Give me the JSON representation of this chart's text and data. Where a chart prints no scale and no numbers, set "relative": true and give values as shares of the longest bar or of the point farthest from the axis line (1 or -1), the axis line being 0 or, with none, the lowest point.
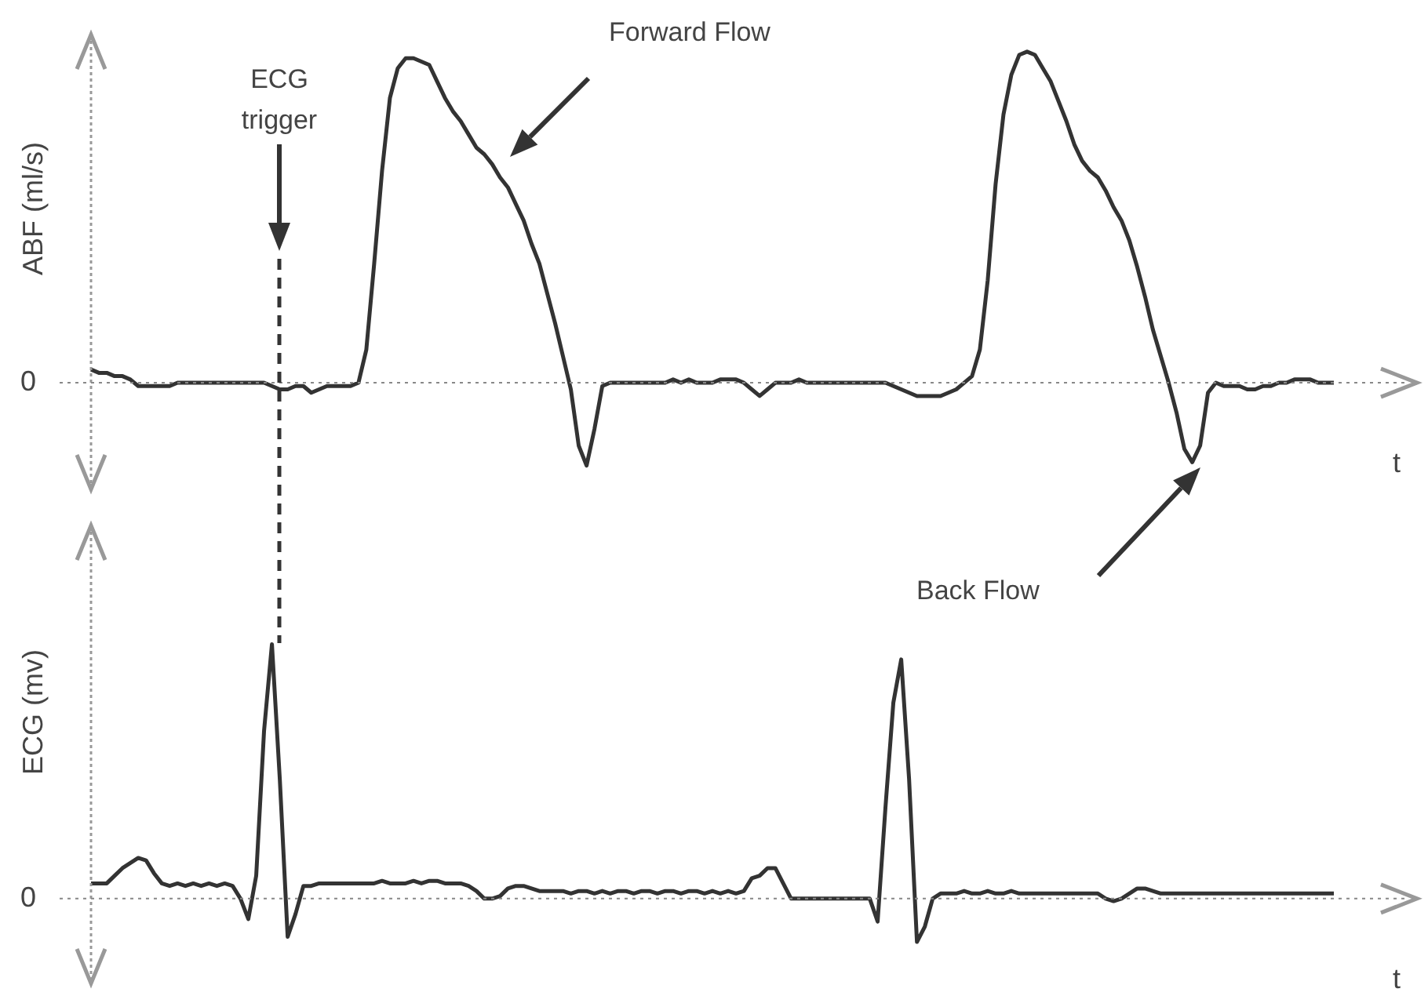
{
  "chart_data": [
    {
      "type": "line",
      "ylabel": "ABF (ml/s)",
      "xlabel": "t",
      "relative": true,
      "color": "#333333",
      "categories": [
        null,
        null,
        null,
        null,
        null,
        null,
        null,
        null,
        null,
        null,
        null,
        null,
        null,
        null,
        null,
        null,
        null,
        null,
        null,
        null,
        null,
        null,
        null,
        null,
        null,
        null,
        null,
        null,
        null,
        null,
        null,
        null,
        null,
        null,
        null,
        null,
        null,
        null,
        null,
        null,
        null,
        null,
        null,
        null,
        null,
        null,
        null,
        null,
        null,
        null,
        null,
        null,
        null,
        null,
        null,
        null,
        null,
        null,
        null,
        null,
        null,
        null,
        null,
        null,
        null,
        null,
        null,
        null,
        null,
        null,
        null,
        null,
        null,
        null,
        null,
        null,
        null,
        null,
        null,
        null,
        null,
        null,
        null,
        null,
        null,
        null,
        null,
        null,
        null,
        null,
        null,
        null,
        null,
        null,
        null,
        null,
        null,
        null,
        null,
        null,
        null,
        null,
        null,
        null,
        null,
        null,
        null,
        null,
        null,
        null,
        null,
        null,
        null,
        null,
        null,
        null,
        null,
        null,
        null,
        null,
        null,
        null,
        null,
        null,
        null,
        null,
        null,
        null,
        null,
        null,
        null,
        null,
        null,
        null,
        null,
        null,
        null,
        null,
        null,
        null,
        null,
        null,
        null,
        null,
        null,
        null,
        null,
        null,
        null,
        null,
        null,
        null,
        null,
        null,
        null,
        null,
        null,
        null,
        null
      ],
      "values": [
        0.04,
        0.03,
        0.03,
        0.02,
        0.02,
        0.01,
        -0.01,
        -0.01,
        -0.01,
        -0.01,
        -0.01,
        0,
        0,
        0,
        0,
        0,
        0,
        0,
        0,
        0,
        0,
        0,
        0,
        -0.01,
        -0.02,
        -0.02,
        -0.01,
        -0.01,
        -0.03,
        -0.02,
        -0.01,
        -0.01,
        -0.01,
        -0.01,
        0,
        0.1,
        0.36,
        0.64,
        0.86,
        0.95,
        0.98,
        0.98,
        0.97,
        0.96,
        0.91,
        0.86,
        0.82,
        0.79,
        0.75,
        0.71,
        0.69,
        0.66,
        0.62,
        0.59,
        0.54,
        0.49,
        0.42,
        0.36,
        0.27,
        0.18,
        0.08,
        -0.02,
        -0.19,
        -0.25,
        -0.14,
        -0.01,
        0,
        0,
        0,
        0,
        0,
        0,
        0,
        0,
        0.01,
        0,
        0.01,
        0,
        0,
        0,
        0.01,
        0.01,
        0.01,
        0,
        -0.02,
        -0.04,
        -0.02,
        0,
        0,
        0,
        0.01,
        0,
        0,
        0,
        0,
        0,
        0,
        0,
        0,
        0,
        0,
        0,
        -0.01,
        -0.02,
        -0.03,
        -0.04,
        -0.04,
        -0.04,
        -0.04,
        -0.03,
        -0.02,
        0,
        0.02,
        0.1,
        0.31,
        0.6,
        0.81,
        0.93,
        0.99,
        1,
        0.99,
        0.95,
        0.91,
        0.85,
        0.79,
        0.72,
        0.67,
        0.64,
        0.62,
        0.58,
        0.53,
        0.49,
        0.43,
        0.35,
        0.26,
        0.16,
        0.08,
        0,
        -0.09,
        -0.2,
        -0.24,
        -0.19,
        -0.03,
        0,
        -0.01,
        -0.01,
        -0.01,
        -0.02,
        -0.02,
        -0.01,
        -0.01,
        0,
        0,
        0.01,
        0.01,
        0.01,
        0,
        0,
        0
      ],
      "ref_lines": [
        {
          "axis": "y",
          "value": 0,
          "label": "0",
          "line_style": "dotted"
        }
      ],
      "annotations": [
        "ECG trigger",
        "Forward Flow",
        "Back Flow"
      ]
    },
    {
      "type": "line",
      "ylabel": "ECG (mv)",
      "xlabel": "t",
      "relative": true,
      "color": "#333333",
      "categories": [
        null,
        null,
        null,
        null,
        null,
        null,
        null,
        null,
        null,
        null,
        null,
        null,
        null,
        null,
        null,
        null,
        null,
        null,
        null,
        null,
        null,
        null,
        null,
        null,
        null,
        null,
        null,
        null,
        null,
        null,
        null,
        null,
        null,
        null,
        null,
        null,
        null,
        null,
        null,
        null,
        null,
        null,
        null,
        null,
        null,
        null,
        null,
        null,
        null,
        null,
        null,
        null,
        null,
        null,
        null,
        null,
        null,
        null,
        null,
        null,
        null,
        null,
        null,
        null,
        null,
        null,
        null,
        null,
        null,
        null,
        null,
        null,
        null,
        null,
        null,
        null,
        null,
        null,
        null,
        null,
        null,
        null,
        null,
        null,
        null,
        null,
        null,
        null,
        null,
        null,
        null,
        null,
        null,
        null,
        null,
        null,
        null,
        null,
        null,
        null,
        null,
        null,
        null,
        null,
        null,
        null,
        null,
        null,
        null,
        null,
        null,
        null,
        null,
        null,
        null,
        null,
        null,
        null,
        null,
        null,
        null,
        null,
        null,
        null,
        null,
        null,
        null,
        null,
        null,
        null,
        null,
        null,
        null,
        null,
        null,
        null,
        null,
        null,
        null,
        null,
        null,
        null,
        null,
        null,
        null,
        null,
        null,
        null,
        null,
        null,
        null,
        null,
        null,
        null,
        null,
        null,
        null,
        null,
        null
      ],
      "values": [
        0.06,
        0.06,
        0.06,
        0.09,
        0.12,
        0.14,
        0.16,
        0.15,
        0.1,
        0.06,
        0.05,
        0.06,
        0.05,
        0.06,
        0.05,
        0.06,
        0.05,
        0.06,
        0.05,
        0,
        -0.08,
        0.09,
        0.66,
        1,
        0.47,
        -0.15,
        -0.06,
        0.05,
        0.05,
        0.06,
        0.06,
        0.06,
        0.06,
        0.06,
        0.06,
        0.06,
        0.06,
        0.07,
        0.06,
        0.06,
        0.06,
        0.07,
        0.06,
        0.07,
        0.07,
        0.06,
        0.06,
        0.06,
        0.05,
        0.03,
        0,
        0,
        0.01,
        0.04,
        0.05,
        0.05,
        0.04,
        0.03,
        0.03,
        0.03,
        0.03,
        0.02,
        0.03,
        0.03,
        0.02,
        0.03,
        0.02,
        0.03,
        0.03,
        0.02,
        0.03,
        0.03,
        0.02,
        0.03,
        0.03,
        0.02,
        0.03,
        0.03,
        0.02,
        0.03,
        0.02,
        0.03,
        0.02,
        0.03,
        0.08,
        0.09,
        0.12,
        0.12,
        0.06,
        0,
        0,
        0,
        0,
        0,
        0,
        0,
        0,
        0,
        0,
        0,
        -0.09,
        0.36,
        0.77,
        0.94,
        0.47,
        -0.17,
        -0.11,
        0,
        0.02,
        0.02,
        0.02,
        0.03,
        0.02,
        0.02,
        0.03,
        0.02,
        0.02,
        0.03,
        0.02,
        0.02,
        0.02,
        0.02,
        0.02,
        0.02,
        0.02,
        0.02,
        0.02,
        0.02,
        0.02,
        0,
        -0.01,
        0,
        0.02,
        0.04,
        0.04,
        0.03,
        0.02,
        0.02,
        0.02,
        0.02,
        0.02,
        0.02,
        0.02,
        0.02,
        0.02,
        0.02,
        0.02,
        0.02,
        0.02,
        0.02,
        0.02,
        0.02,
        0.02,
        0.02,
        0.02,
        0.02,
        0.02,
        0.02,
        0.02
      ],
      "ref_lines": [
        {
          "axis": "y",
          "value": 0,
          "label": "0",
          "line_style": "dotted"
        }
      ]
    }
  ]
}
